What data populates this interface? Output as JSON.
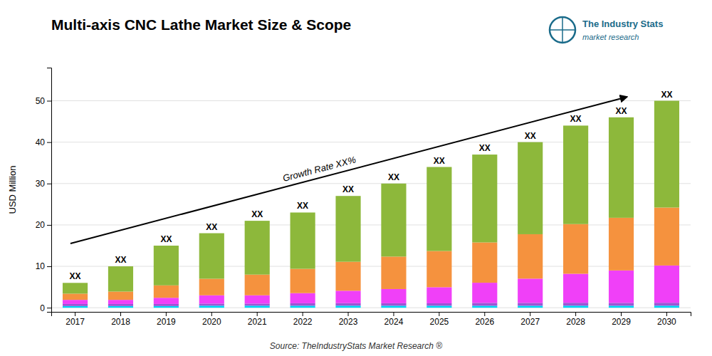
{
  "chart_data": {
    "type": "bar",
    "stacked": true,
    "grid": true,
    "title": "Multi-axis CNC Lathe Market Size & Scope",
    "y_label": "USD Million",
    "source": "Source: TheIndustryStats Market Research ®",
    "annotations": [
      "Growth Rate XX%"
    ],
    "logo_texts": [
      "The Industry Stats",
      "market research"
    ],
    "logo_color": "#1a6b8a",
    "categories": [
      "2017",
      "2018",
      "2019",
      "2020",
      "2021",
      "2022",
      "2023",
      "2024",
      "2025",
      "2026",
      "2027",
      "2028",
      "2029",
      "2030"
    ],
    "series": [
      {
        "color": "#00d4f5",
        "values": [
          0.4,
          0.4,
          0.4,
          0.5,
          0.5,
          0.4893617,
          0.5,
          0.4901961,
          0.4857143,
          0.4868421,
          0.4878049,
          0.5,
          0.4893617,
          0.5
        ]
      },
      {
        "color": "#9b55d4",
        "values": [
          0.5,
          0.5,
          0.5,
          0.5,
          0.5,
          0.587234,
          0.6,
          0.5882353,
          0.5828571,
          0.6815789,
          0.6829268,
          0.7,
          0.6851064,
          0.7
        ]
      },
      {
        "color": "#f040f8",
        "values": [
          1.0,
          1.0,
          1.5,
          2.0,
          2.0,
          2.4468085,
          3.0,
          3.4313725,
          3.8857143,
          4.8684211,
          5.8536585,
          7.0,
          7.8297872,
          9.0
        ]
      },
      {
        "color": "#f5923e",
        "values": [
          1.5,
          2.0,
          3.0,
          4.0,
          5.0,
          5.8723404,
          7.0,
          7.8431373,
          8.7428571,
          9.7368421,
          10.7317073,
          12.0,
          12.7234043,
          14.0
        ]
      },
      {
        "color": "#8db83b",
        "values": [
          2.6,
          6.1,
          9.6,
          11.0,
          13.0,
          13.6042553,
          15.9,
          17.6470588,
          20.3028571,
          21.2263158,
          22.2439024,
          23.8,
          24.2723404,
          25.8
        ]
      }
    ],
    "totals": [
      6,
      10,
      15,
      18,
      21,
      23,
      27,
      30,
      34,
      37,
      40,
      44,
      46,
      50
    ],
    "total_labels": [
      "XX",
      "XX",
      "XX",
      "XX",
      "XX",
      "XX",
      "XX",
      "XX",
      "XX",
      "XX",
      "XX",
      "XX",
      "XX",
      "XX"
    ],
    "ylim": [
      -1,
      58
    ],
    "yticks": [
      0,
      10,
      20,
      30,
      40,
      50
    ]
  }
}
